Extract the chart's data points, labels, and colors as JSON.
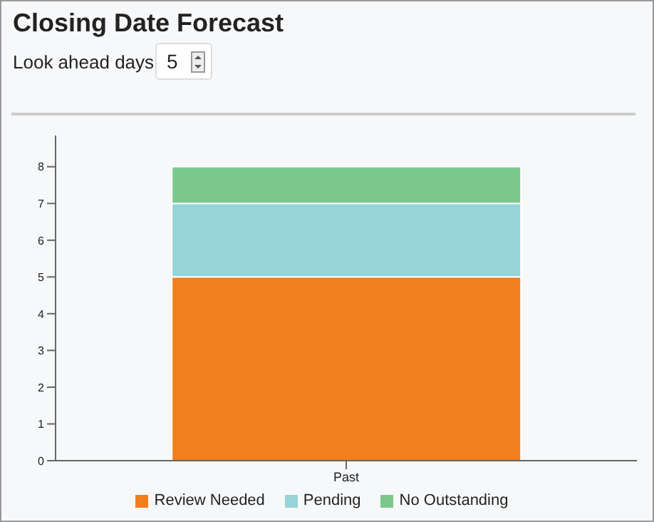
{
  "chart_data": {
    "type": "bar",
    "title": "Closing Date Forecast",
    "annotations": [
      "Look ahead days",
      "5"
    ],
    "categories": [
      "Past"
    ],
    "stacked": true,
    "series": [
      {
        "name": "Review Needed",
        "color": "#f07f1e",
        "values": [
          5
        ]
      },
      {
        "name": "Pending",
        "color": "#95d5d9",
        "values": [
          2
        ]
      },
      {
        "name": "No Outstanding",
        "color": "#7bc98a",
        "values": [
          1
        ]
      }
    ],
    "ylim": [
      0,
      8.85
    ],
    "yticks": [
      0,
      1,
      2,
      3,
      4,
      5,
      6,
      7,
      8
    ],
    "grid": false,
    "legend": "bottom"
  }
}
